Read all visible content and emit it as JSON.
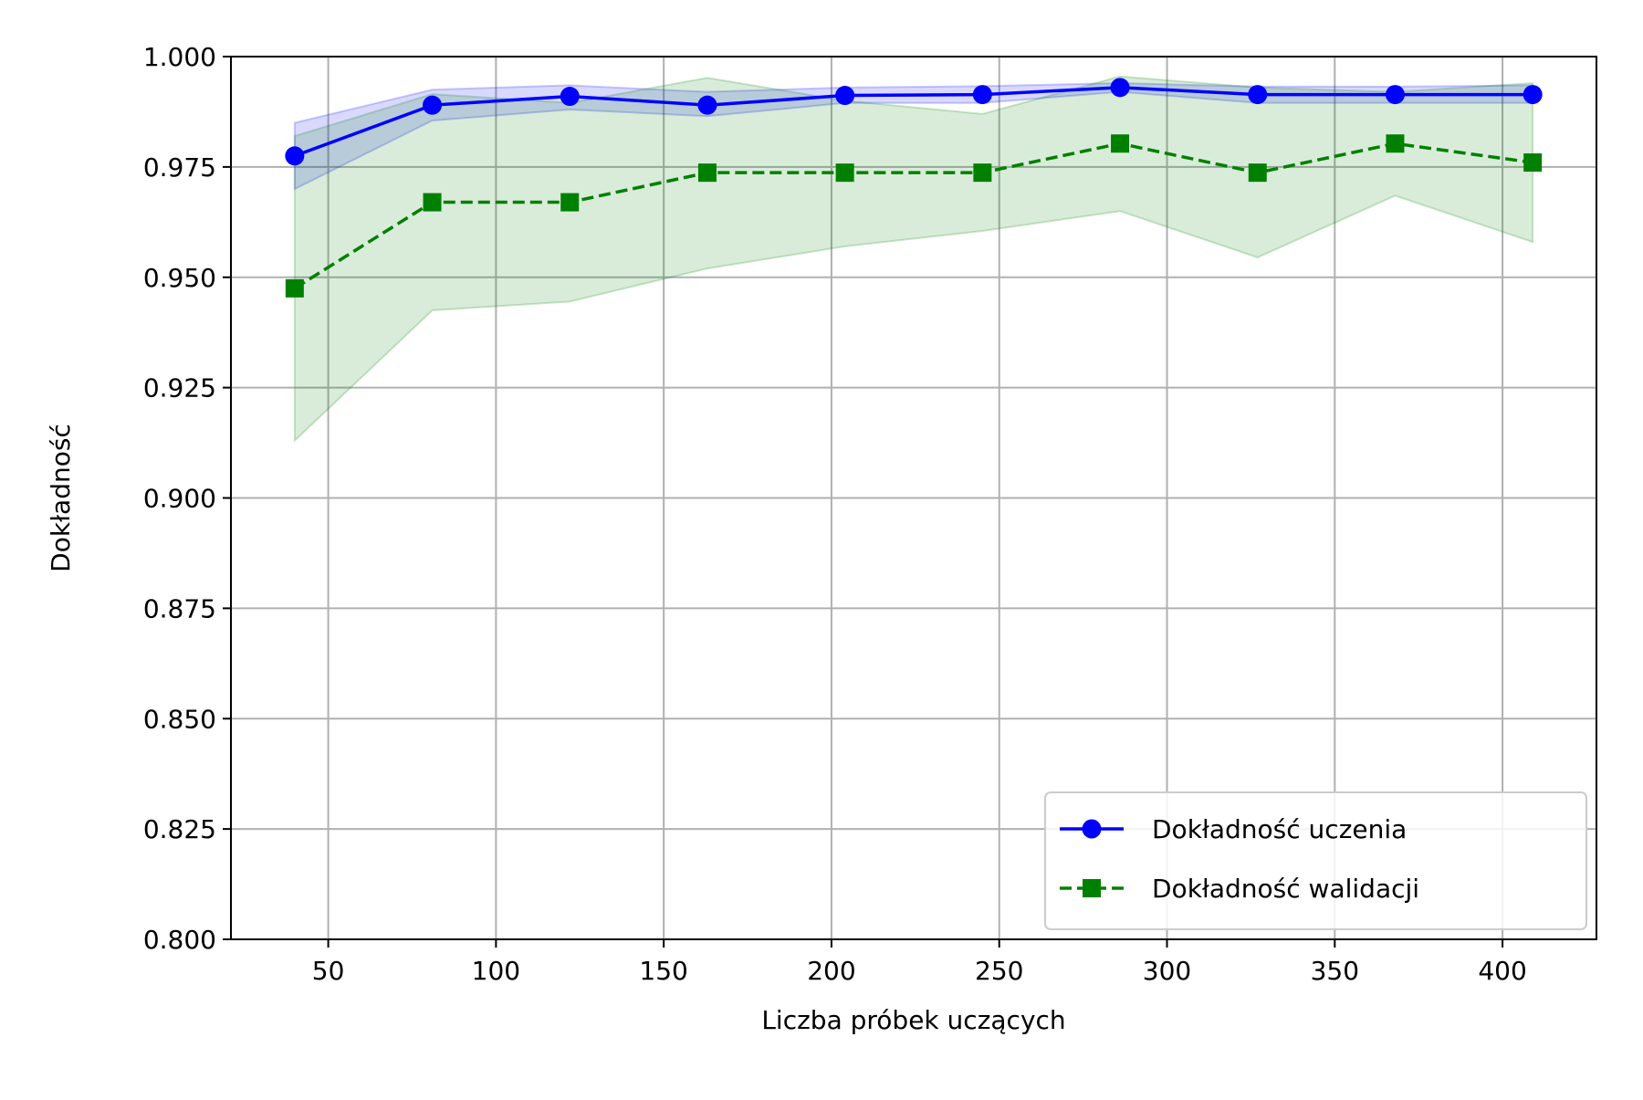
{
  "chart_data": {
    "type": "line",
    "title": "",
    "xlabel": "Liczba próbek uczących",
    "ylabel": "Dokładność",
    "xlim": [
      21,
      428
    ],
    "ylim": [
      0.8,
      1.0
    ],
    "xticks": [
      50,
      100,
      150,
      200,
      250,
      300,
      350,
      400
    ],
    "yticks": [
      0.8,
      0.825,
      0.85,
      0.875,
      0.9,
      0.925,
      0.95,
      0.975,
      1.0
    ],
    "ytick_labels": [
      "0.800",
      "0.825",
      "0.850",
      "0.875",
      "0.900",
      "0.925",
      "0.950",
      "0.975",
      "1.000"
    ],
    "grid": true,
    "legend_position": "lower-right",
    "x": [
      40,
      81,
      122,
      163,
      204,
      245,
      286,
      327,
      368,
      409
    ],
    "series": [
      {
        "name": "Dokładność uczenia",
        "color": "#0000ff",
        "marker": "circle",
        "linestyle": "solid",
        "values": [
          0.9775,
          0.989,
          0.991,
          0.989,
          0.9912,
          0.9914,
          0.993,
          0.9914,
          0.9914,
          0.9914
        ],
        "band_lower": [
          0.97,
          0.9855,
          0.988,
          0.9865,
          0.9895,
          0.9895,
          0.992,
          0.9895,
          0.9895,
          0.9895
        ],
        "band_upper": [
          0.985,
          0.9925,
          0.9935,
          0.992,
          0.993,
          0.9933,
          0.994,
          0.9932,
          0.9932,
          0.9935
        ],
        "band_color": "#0000ff"
      },
      {
        "name": "Dokładność walidacji",
        "color": "#008000",
        "marker": "square",
        "linestyle": "dashed",
        "values": [
          0.9475,
          0.967,
          0.967,
          0.9737,
          0.9737,
          0.9737,
          0.9803,
          0.9737,
          0.9803,
          0.976
        ],
        "band_lower": [
          0.913,
          0.9425,
          0.9445,
          0.952,
          0.957,
          0.9605,
          0.965,
          0.9545,
          0.9685,
          0.958
        ],
        "band_upper": [
          0.982,
          0.9915,
          0.9895,
          0.9952,
          0.99,
          0.987,
          0.9955,
          0.993,
          0.992,
          0.994
        ],
        "band_color": "#008000"
      }
    ]
  }
}
